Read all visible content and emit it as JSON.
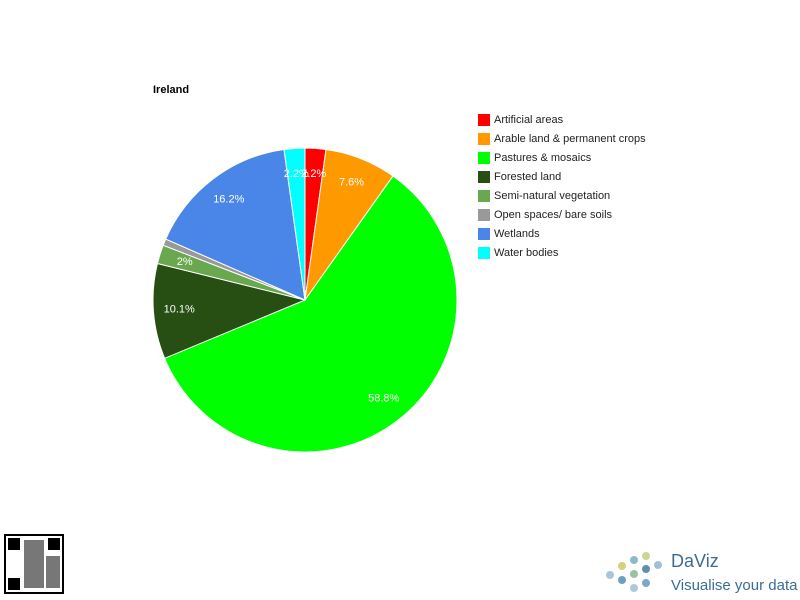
{
  "chart_data": {
    "type": "pie",
    "title": "Ireland",
    "categories": [
      "Artificial areas",
      "Arable land & permanent crops",
      "Pastures & mosaics",
      "Forested land",
      "Semi-natural vegetation",
      "Open spaces/ bare soils",
      "Wetlands",
      "Water bodies"
    ],
    "values": [
      2.2,
      7.6,
      58.8,
      10.1,
      2,
      0.7,
      16.2,
      2.2
    ],
    "value_labels": [
      "2.2%",
      "7.6%",
      "58.8%",
      "10.1%",
      "2%",
      null,
      "16.2%",
      "2.2%"
    ],
    "colors": [
      "#ff0000",
      "#ff9900",
      "#00ff00",
      "#274e13",
      "#6aa84f",
      "#999999",
      "#4a86e8",
      "#00ffff"
    ],
    "legend": "right"
  },
  "branding": {
    "name": "DaViz",
    "tagline": "Visualise your data"
  }
}
